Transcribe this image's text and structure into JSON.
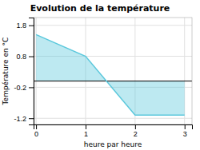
{
  "chart_data": {
    "type": "area",
    "title": "Evolution de la température",
    "xlabel": "heure par heure",
    "ylabel": "Température en °C",
    "x": [
      0,
      1,
      2,
      3
    ],
    "values": [
      1.5,
      0.8,
      -1.1,
      -1.1
    ],
    "color": "#5bc8dc",
    "xlim": [
      -0.05,
      3.15
    ],
    "ylim": [
      -1.4,
      2.05
    ],
    "xticks": [
      0,
      1,
      2,
      3
    ],
    "yticks": [
      -1.2,
      -0.2,
      0.8,
      1.8
    ],
    "grid": true
  }
}
